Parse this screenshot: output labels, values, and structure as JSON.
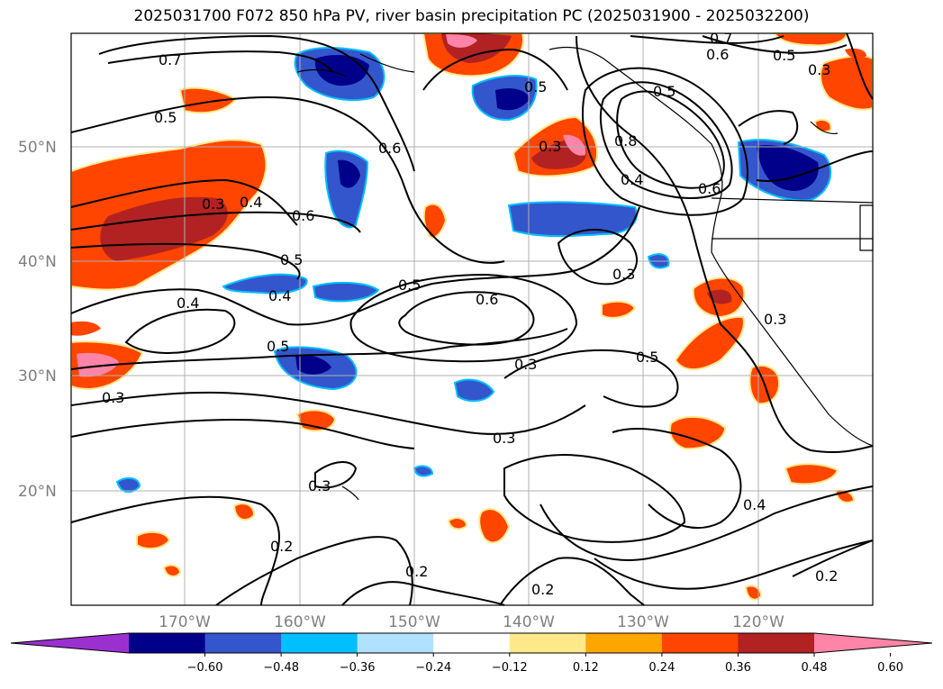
{
  "title": "2025031700 F072 850 hPa PV, river basin precipitation PC (2025031900 - 2025032200)",
  "lat_labels": [
    "50°N",
    "40°N",
    "30°N",
    "20°N"
  ],
  "lon_labels": [
    "170°W",
    "160°W",
    "150°W",
    "140°W",
    "130°W",
    "120°W"
  ],
  "colorbar": {
    "ticks": [
      "−0.60",
      "−0.48",
      "−0.36",
      "−0.24",
      "−0.12",
      "0.12",
      "0.24",
      "0.36",
      "0.48",
      "0.60"
    ],
    "colors": [
      "#9b30d0",
      "#00008b",
      "#3456cc",
      "#00bfff",
      "#b0e2ff",
      "#ffffff",
      "#ffe88a",
      "#ffa500",
      "#ff4500",
      "#b22222",
      "#ff85a8"
    ]
  },
  "contour_labels": [
    "0.7",
    "0.7",
    "0.6",
    "0.5",
    "0.5",
    "0.3",
    "0.6",
    "0.4",
    "0.6",
    "0.5",
    "0.4",
    "0.4",
    "0.5",
    "0.6",
    "0.5",
    "0.3",
    "0.3",
    "0.3",
    "0.5",
    "0.3",
    "0.8",
    "0.4",
    "0.6",
    "0.5",
    "0.3",
    "0.3",
    "0.4",
    "0.2",
    "0.2",
    "0.2",
    "0.2",
    "0.3",
    "0.5",
    "0.3"
  ]
}
